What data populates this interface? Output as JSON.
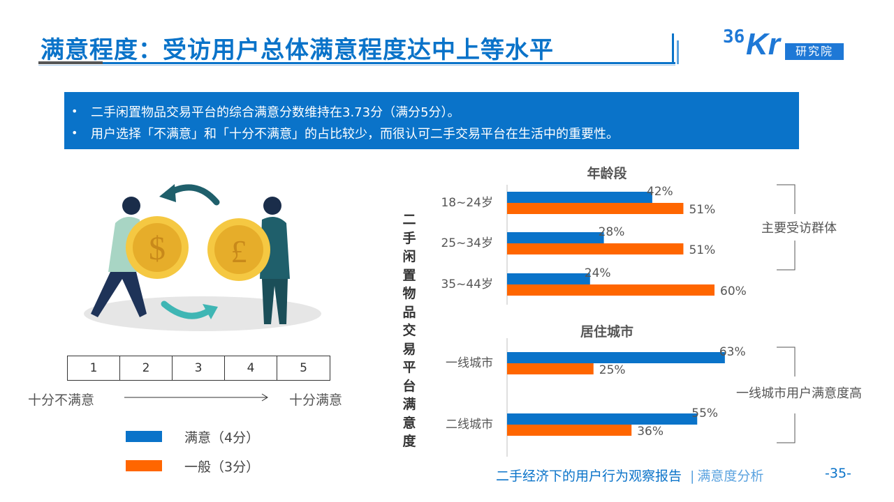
{
  "header": {
    "title": "满意程度：受访用户总体满意程度达中上等水平",
    "logo_number": "36",
    "logo_letters": "Kr",
    "logo_suffix": "研究院"
  },
  "summary": {
    "items": [
      "二手闲置物品交易平台的综合满意分数维持在3.73分（满分5分）。",
      "用户选择「不满意」和「十分不满意」的占比较少，而很认可二手交易平台在生活中的重要性。"
    ]
  },
  "scale": {
    "cells": [
      "1",
      "2",
      "3",
      "4",
      "5"
    ],
    "low_label": "十分不满意",
    "high_label": "十分满意"
  },
  "legend": {
    "items": [
      {
        "label": "满意（4分）",
        "color": "#0A73C9"
      },
      {
        "label": "一般（3分）",
        "color": "#FF6600"
      }
    ]
  },
  "vertical_title": "二手闲置物品交易平台满意度",
  "chart_data": [
    {
      "type": "bar",
      "orientation": "horizontal",
      "title": "年龄段",
      "categories": [
        "18~24岁",
        "25~34岁",
        "35~44岁"
      ],
      "series": [
        {
          "name": "满意（4分）",
          "color": "#0A73C9",
          "values": [
            42,
            28,
            24
          ],
          "labels": [
            "42%",
            "28%",
            "24%"
          ]
        },
        {
          "name": "一般（3分）",
          "color": "#FF6600",
          "values": [
            51,
            51,
            60
          ],
          "labels": [
            "51%",
            "51%",
            "60%"
          ]
        }
      ],
      "xlim": [
        0,
        65
      ],
      "annotation": "主要受访群体"
    },
    {
      "type": "bar",
      "orientation": "horizontal",
      "title": "居住城市",
      "categories": [
        "一线城市",
        "二线城市"
      ],
      "series": [
        {
          "name": "满意（4分）",
          "color": "#0A73C9",
          "values": [
            63,
            55
          ],
          "labels": [
            "63%",
            "55%"
          ]
        },
        {
          "name": "一般（3分）",
          "color": "#FF6600",
          "values": [
            25,
            36
          ],
          "labels": [
            "25%",
            "36%"
          ]
        }
      ],
      "xlim": [
        0,
        65
      ],
      "annotation": "一线城市用户满意度高"
    }
  ],
  "footer": {
    "report": "二手经济下的用户行为观察报告",
    "separator": "|",
    "section": "满意度分析",
    "page": "-35-"
  }
}
